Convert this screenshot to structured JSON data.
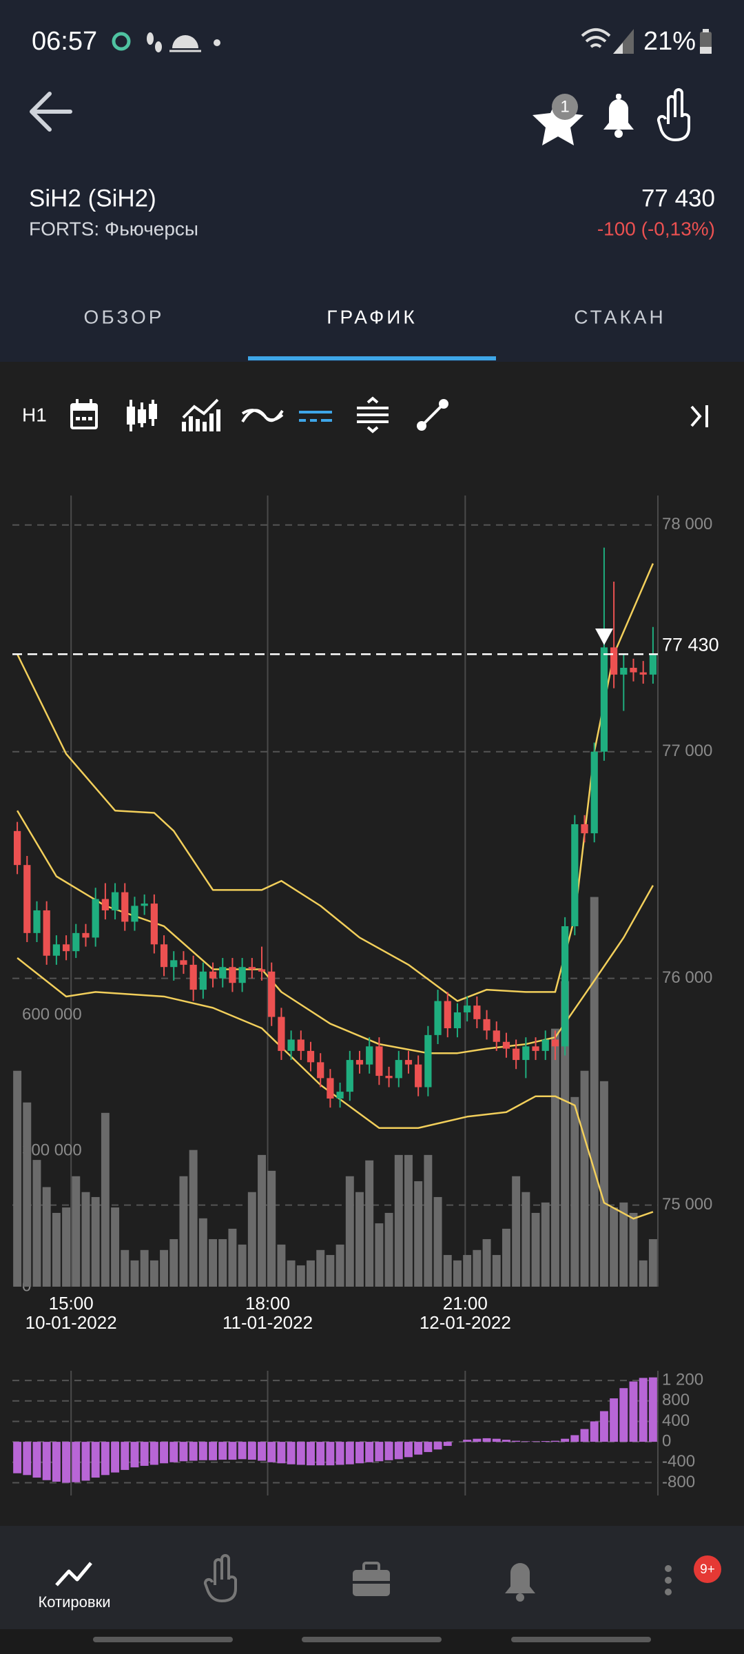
{
  "status_bar": {
    "time": "06:57",
    "battery": "21%"
  },
  "header": {
    "favorites_badge": "1"
  },
  "instrument": {
    "name": "SiH2 (SiH2)",
    "exchange": "FORTS: Фьючерсы",
    "price": "77 430",
    "change": "-100 (-0,13%)"
  },
  "tabs": [
    "ОБЗОР",
    "ГРАФИК",
    "СТАКАН"
  ],
  "active_tab": 1,
  "toolbar": {
    "timeframe": "H1"
  },
  "chart_data": [
    {
      "type": "candlestick",
      "open": [
        76650,
        76500,
        76200,
        76300,
        76100,
        76150,
        76120,
        76200,
        76180,
        76350,
        76300,
        76380,
        76250,
        76320,
        76330,
        76150,
        76050,
        76080,
        76060,
        75950,
        76030,
        76000,
        76050,
        75980,
        76050,
        76040,
        76030,
        75830,
        75680,
        75730,
        75680,
        75630,
        75560,
        75470,
        75500,
        75640,
        75620,
        75700,
        75570,
        75560,
        75640,
        75620,
        75520,
        75750,
        75900,
        75780,
        75850,
        75880,
        75820,
        75770,
        75720,
        75690,
        75640,
        75700,
        75680,
        75730,
        75700,
        76230,
        76680,
        76640,
        77000,
        77460,
        77340,
        77370,
        77350,
        77340
      ],
      "high": [
        76690,
        76540,
        76340,
        76340,
        76190,
        76190,
        76240,
        76240,
        76400,
        76420,
        76420,
        76420,
        76360,
        76370,
        76370,
        76190,
        76120,
        76120,
        76100,
        76070,
        76070,
        76090,
        76090,
        76090,
        76090,
        76140,
        76070,
        75870,
        75770,
        75770,
        75720,
        75670,
        75600,
        75540,
        75680,
        75680,
        75740,
        75740,
        75610,
        75680,
        75680,
        75660,
        75790,
        75950,
        75940,
        75890,
        75920,
        75920,
        75860,
        75810,
        75760,
        75730,
        75740,
        75740,
        75770,
        75770,
        76270,
        76720,
        76720,
        77040,
        77900,
        77750,
        77430,
        77410,
        77400,
        77550
      ],
      "low": [
        76460,
        76160,
        76160,
        76060,
        76060,
        76080,
        76090,
        76140,
        76140,
        76260,
        76260,
        76210,
        76210,
        76280,
        76110,
        76010,
        75990,
        76020,
        75900,
        75910,
        75960,
        75960,
        75940,
        75940,
        76000,
        75990,
        75790,
        75640,
        75640,
        75640,
        75590,
        75520,
        75430,
        75430,
        75460,
        75580,
        75580,
        75530,
        75520,
        75520,
        75580,
        75480,
        75480,
        75710,
        75740,
        75740,
        75810,
        75780,
        75730,
        75680,
        75650,
        75600,
        75560,
        75640,
        75640,
        75640,
        75660,
        76190,
        76600,
        76600,
        76960,
        77280,
        77180,
        77310,
        77300,
        77300
      ],
      "close": [
        76500,
        76200,
        76300,
        76100,
        76150,
        76120,
        76200,
        76180,
        76350,
        76300,
        76380,
        76250,
        76320,
        76330,
        76150,
        76050,
        76080,
        76060,
        75950,
        76030,
        76000,
        76050,
        75980,
        76050,
        76040,
        76030,
        75830,
        75680,
        75730,
        75680,
        75630,
        75560,
        75470,
        75500,
        75640,
        75620,
        75700,
        75570,
        75560,
        75640,
        75620,
        75520,
        75750,
        75900,
        75780,
        75850,
        75880,
        75820,
        75770,
        75720,
        75690,
        75640,
        75700,
        75680,
        75730,
        75700,
        76230,
        76680,
        76640,
        77000,
        77460,
        77340,
        77370,
        77350,
        77340,
        77430
      ],
      "up_color": "#1fae7f",
      "down_color": "#ec5151",
      "ylim": [
        74640,
        78130
      ],
      "yticks": [
        {
          "value": 75000,
          "label": "75 000"
        },
        {
          "value": 76000,
          "label": "76 000"
        },
        {
          "value": 77000,
          "label": "77 000"
        },
        {
          "value": 78000,
          "label": "78 000"
        }
      ],
      "axis_side": "right",
      "grid": true,
      "price_line": {
        "value": 77430,
        "label": "77 430"
      },
      "band_color": "#f2cf5b",
      "bands": [
        {
          "x": [
            0,
            5,
            10,
            14,
            16,
            20,
            25,
            27,
            31,
            35,
            40,
            45,
            48,
            52,
            55,
            57,
            59,
            61,
            65
          ],
          "values": [
            77430,
            76990,
            76740,
            76730,
            76650,
            76390,
            76390,
            76430,
            76320,
            76180,
            76060,
            75900,
            75950,
            75940,
            75940,
            76270,
            77000,
            77430,
            77830
          ]
        },
        {
          "x": [
            0,
            4,
            9,
            15,
            20,
            25,
            27,
            32,
            37,
            42,
            45,
            48,
            52,
            55,
            59,
            62,
            65
          ],
          "values": [
            76740,
            76450,
            76320,
            76230,
            76040,
            76040,
            75940,
            75800,
            75710,
            75670,
            75670,
            75690,
            75710,
            75740,
            75990,
            76180,
            76410
          ]
        },
        {
          "x": [
            0,
            5,
            8,
            15,
            20,
            25,
            31,
            37,
            41,
            46,
            50,
            53,
            55,
            57,
            60,
            63,
            65
          ],
          "values": [
            76090,
            75920,
            75940,
            75920,
            75870,
            75780,
            75530,
            75340,
            75340,
            75390,
            75410,
            75480,
            75480,
            75440,
            75010,
            74940,
            74970
          ]
        }
      ],
      "xticks": [
        {
          "value": 5.5,
          "label": "15:00",
          "date": "10-01-2022"
        },
        {
          "value": 25.6,
          "label": "18:00",
          "date": "11-01-2022"
        },
        {
          "value": 45.8,
          "label": "21:00",
          "date": "12-01-2022"
        }
      ]
    },
    {
      "type": "bar",
      "values": [
        477000,
        407000,
        280000,
        220000,
        163000,
        175000,
        244000,
        209000,
        198000,
        384000,
        175000,
        81000,
        58000,
        81000,
        58000,
        81000,
        105000,
        244000,
        302000,
        151000,
        105000,
        105000,
        128000,
        93000,
        209000,
        291000,
        256000,
        93000,
        58000,
        47000,
        58000,
        81000,
        70000,
        93000,
        244000,
        209000,
        279000,
        140000,
        163000,
        291000,
        291000,
        233000,
        291000,
        198000,
        70000,
        58000,
        70000,
        81000,
        105000,
        70000,
        128000,
        244000,
        209000,
        163000,
        186000,
        570000,
        675000,
        419000,
        477000,
        861000,
        454000,
        175000,
        186000,
        163000,
        58000,
        105000
      ],
      "color": "#6b6b6b",
      "ylim": [
        0,
        1748000
      ],
      "yticks": [
        0,
        {
          "value": 300000,
          "label": "300 000"
        },
        {
          "value": 600000,
          "label": "600 000"
        }
      ],
      "axis_side": "left",
      "grid": false
    },
    {
      "type": "bar",
      "values": [
        -615,
        -650,
        -700,
        -750,
        -780,
        -800,
        -790,
        -760,
        -700,
        -650,
        -600,
        -550,
        -500,
        -470,
        -450,
        -420,
        -400,
        -380,
        -370,
        -360,
        -360,
        -350,
        -350,
        -340,
        -350,
        -370,
        -400,
        -420,
        -440,
        -450,
        -460,
        -460,
        -460,
        -450,
        -440,
        -420,
        -400,
        -380,
        -360,
        -340,
        -300,
        -250,
        -200,
        -150,
        -80,
        0,
        40,
        60,
        70,
        60,
        40,
        20,
        10,
        10,
        15,
        20,
        60,
        130,
        250,
        400,
        600,
        850,
        1050,
        1180,
        1250,
        1260
      ],
      "color": "#b866d6",
      "ylim": [
        -1050,
        1390
      ],
      "yticks": [
        {
          "value": 1200,
          "label": "1 200"
        },
        800,
        400,
        0,
        -400,
        -800
      ],
      "axis_side": "right",
      "grid": true
    }
  ],
  "bottom_nav": {
    "active_label": "Котировки",
    "more_badge": "9+"
  }
}
